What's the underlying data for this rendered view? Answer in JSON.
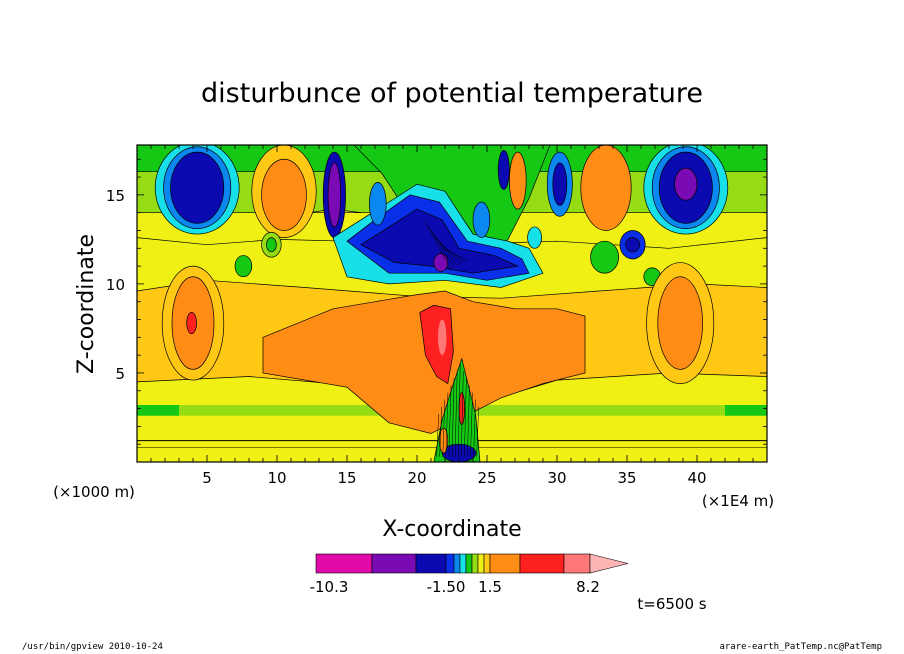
{
  "chart_data": {
    "type": "heatmap",
    "title": "disturbunce of potential temperature",
    "xlabel": "X-coordinate",
    "ylabel": "Z-coordinate",
    "x_unit": "(×1E4 m)",
    "y_unit": "(×1000 m)",
    "xlim": [
      0,
      45
    ],
    "ylim": [
      0,
      17.8
    ],
    "x_ticks": [
      5,
      10,
      15,
      20,
      25,
      30,
      35,
      40
    ],
    "y_ticks": [
      5,
      10,
      15
    ],
    "time_label": "t=6500 s",
    "colorbar": {
      "labels": [
        "-10.3",
        "-1.50",
        "1.5",
        "8.2"
      ],
      "colors": [
        "#e00aa8",
        "#7a0ab4",
        "#0a0ab0",
        "#0a2fe8",
        "#0a88f0",
        "#18e0e8",
        "#14c814",
        "#96dc14",
        "#f0f014",
        "#ffc814",
        "#ff8c14",
        "#ff2020",
        "#ff7878",
        "#ffb4b4"
      ]
    },
    "features": [
      {
        "x": 4.3,
        "z": 15.5,
        "value": "min",
        "color": "#0a0ab0"
      },
      {
        "x": 39.2,
        "z": 15.6,
        "value": "min",
        "color": "#7a0ab4"
      },
      {
        "x": 21.7,
        "z": 11.2,
        "value": "min",
        "color": "#7a0ab4"
      },
      {
        "x": 21.8,
        "z": 6.8,
        "value": "max",
        "color": "#ff2020"
      },
      {
        "x": 4.0,
        "z": 7.8,
        "value": "local max",
        "color": "#ff8c14"
      },
      {
        "x": 38.8,
        "z": 7.8,
        "value": "local max",
        "color": "#ff8c14"
      }
    ]
  },
  "footer": {
    "left": "/usr/bin/gpview   2010-10-24",
    "right": "arare-earth_PatTemp.nc@PatTemp"
  }
}
